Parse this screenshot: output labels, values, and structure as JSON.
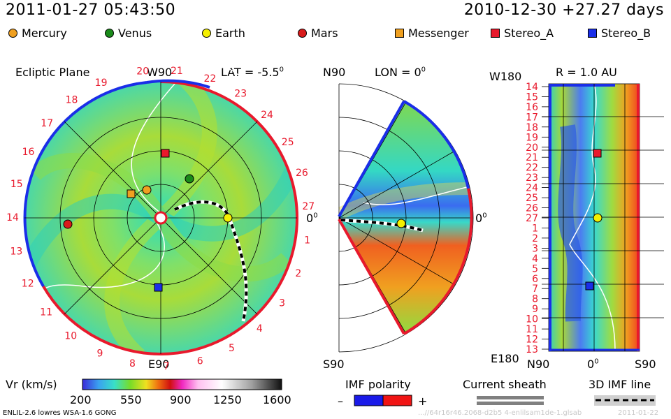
{
  "header": {
    "datetime": "2011-01-27 05:43:50",
    "reference": "2010-12-30 +27.27 days"
  },
  "legend": [
    {
      "label": "Mercury",
      "shape": "circle",
      "color": "#f0a020"
    },
    {
      "label": "Venus",
      "shape": "circle",
      "color": "#1a8a1a"
    },
    {
      "label": "Earth",
      "shape": "circle",
      "color": "#f5f000"
    },
    {
      "label": "Mars",
      "shape": "circle",
      "color": "#d81b1b"
    },
    {
      "label": "Messenger",
      "shape": "square",
      "color": "#f0a020"
    },
    {
      "label": "Stereo_A",
      "shape": "square",
      "color": "#e8192c"
    },
    {
      "label": "Stereo_B",
      "shape": "square",
      "color": "#1a2ee8"
    }
  ],
  "ecliptic": {
    "title": "Ecliptic Plane",
    "top": "W90",
    "bottom": "E90",
    "lat_label": "LAT = -5.5",
    "lat_sup": "0",
    "right_zero": "0",
    "right_zero_sup": "0",
    "rotation_labels": [
      "20",
      "21",
      "22",
      "23",
      "24",
      "25",
      "26",
      "27",
      "1",
      "2",
      "3",
      "4",
      "5",
      "6",
      "7",
      "8",
      "9",
      "10",
      "11",
      "12",
      "13",
      "14",
      "15",
      "16",
      "17",
      "18",
      "19"
    ]
  },
  "meridional": {
    "top_left": "N90",
    "lon_label": "LON = 0",
    "lon_sup": "0",
    "bottom_left": "S90",
    "right_zero": "0",
    "right_zero_sup": "0"
  },
  "synoptic": {
    "top_left": "W180",
    "r_label": "R = 1.0 AU",
    "bottom_left": "E180",
    "x_left": "N90",
    "x_mid": "0",
    "x_mid_sup": "0",
    "x_right": "S90",
    "day_labels": [
      "14",
      "15",
      "16",
      "17",
      "18",
      "19",
      "20",
      "21",
      "22",
      "23",
      "24",
      "25",
      "26",
      "27",
      "1",
      "2",
      "3",
      "4",
      "5",
      "6",
      "7",
      "8",
      "9",
      "10",
      "11",
      "12",
      "13"
    ]
  },
  "colorbar": {
    "label": "Vr (km/s)",
    "ticks": [
      "200",
      "550",
      "900",
      "1250",
      "1600"
    ]
  },
  "imf": {
    "label": "IMF polarity",
    "minus": "–",
    "plus": "+",
    "neg_color": "#1a1ae8",
    "pos_color": "#f01414"
  },
  "current_sheath": {
    "label": "Current sheath"
  },
  "imf_line": {
    "label": "3D IMF line"
  },
  "footer": {
    "model": "ENLIL-2.6 lowres WSA-1.6 GONG",
    "run_id": "...//64r16r46.2068-d2b5 4-enlilsam1de-1.glsab",
    "run_date": "2011-01-22"
  }
}
